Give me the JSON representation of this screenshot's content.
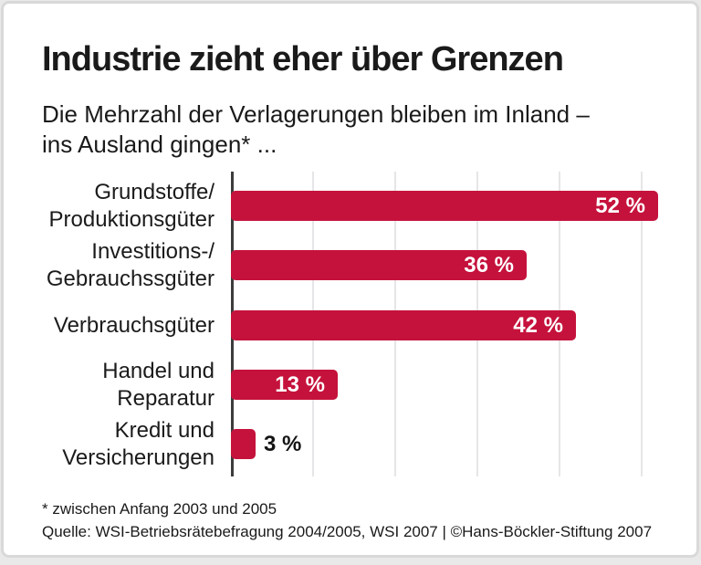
{
  "page": {
    "title": "Industrie zieht eher über Grenzen",
    "subtitle_lines": [
      "Die Mehrzahl der Verlagerungen bleiben im Inland –",
      "ins Ausland gingen* ..."
    ],
    "footnote": "* zwischen Anfang 2003 und 2005",
    "source": "Quelle: WSI-Betriebsrätebefragung 2004/2005, WSI 2007 | ©Hans-Böckler-Stiftung 2007"
  },
  "colors": {
    "bar": "#C5123C",
    "axis": "#3C3C3C",
    "gridline": "#E6E6E8",
    "text": "#1A1A1A",
    "value_label_inside": "#FFFFFF",
    "value_label_outside": "#141414",
    "card_border": "#D9D9D9",
    "card_bg": "#FFFFFF",
    "page_bg": "#E9E9E9"
  },
  "chart_data": {
    "type": "bar",
    "orientation": "horizontal",
    "title": "Industrie zieht eher über Grenzen",
    "subtitle": "Die Mehrzahl der Verlagerungen bleiben im Inland – ins Ausland gingen* ...",
    "categories": [
      "Grundstoffe/Produktionsgüter",
      "Investitions-/Gebrauchsgüter",
      "Verbrauchsgüter",
      "Handel und Reparatur",
      "Kredit und Versicherungen"
    ],
    "values": [
      52,
      36,
      42,
      13,
      3
    ],
    "unit": "%",
    "xlim": [
      0,
      57
    ],
    "gridlines_percent": [
      10,
      20,
      30,
      40,
      50
    ],
    "legend": "none",
    "bars": [
      {
        "label_lines": [
          "Grundstoffe/",
          "Produktionsgüter"
        ],
        "value": 52,
        "value_label": "52 %",
        "label_placement": "inside"
      },
      {
        "label_lines": [
          "Investitions-/",
          "Gebrauchssgüter"
        ],
        "value": 36,
        "value_label": "36 %",
        "label_placement": "inside"
      },
      {
        "label_lines": [
          "Verbrauchsgüter"
        ],
        "value": 42,
        "value_label": "42 %",
        "label_placement": "inside"
      },
      {
        "label_lines": [
          "Handel und",
          "Reparatur"
        ],
        "value": 13,
        "value_label": "13 %",
        "label_placement": "inside"
      },
      {
        "label_lines": [
          "Kredit und",
          "Versicherungen"
        ],
        "value": 3,
        "value_label": "3 %",
        "label_placement": "outside"
      }
    ]
  }
}
